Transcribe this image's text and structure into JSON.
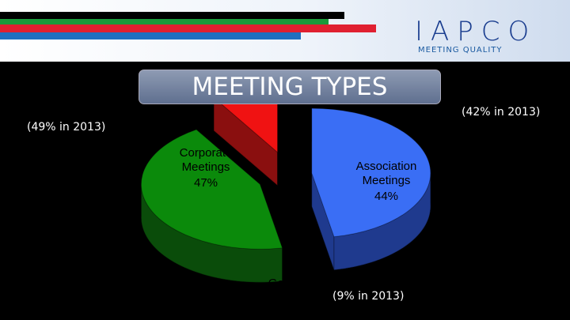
{
  "header": {
    "logo": "IAPCO",
    "tagline": "MEETING QUALITY"
  },
  "chart_data": {
    "type": "pie",
    "title": "MEETING TYPES",
    "categories": [
      "Corporate Meetings",
      "Association Meetings",
      "Government"
    ],
    "values": [
      47,
      44,
      9
    ],
    "value_labels": [
      "47%",
      "44%",
      null
    ],
    "colors": [
      "#3a6ef5",
      "#0b8a0b",
      "#f01212"
    ],
    "side_colors": [
      "#1f3a8e",
      "#0a4c0a",
      "#8a0f0f"
    ],
    "annotations": [
      "(49% in 2013)",
      "(42% in 2013)",
      "(9% in 2013)"
    ]
  }
}
